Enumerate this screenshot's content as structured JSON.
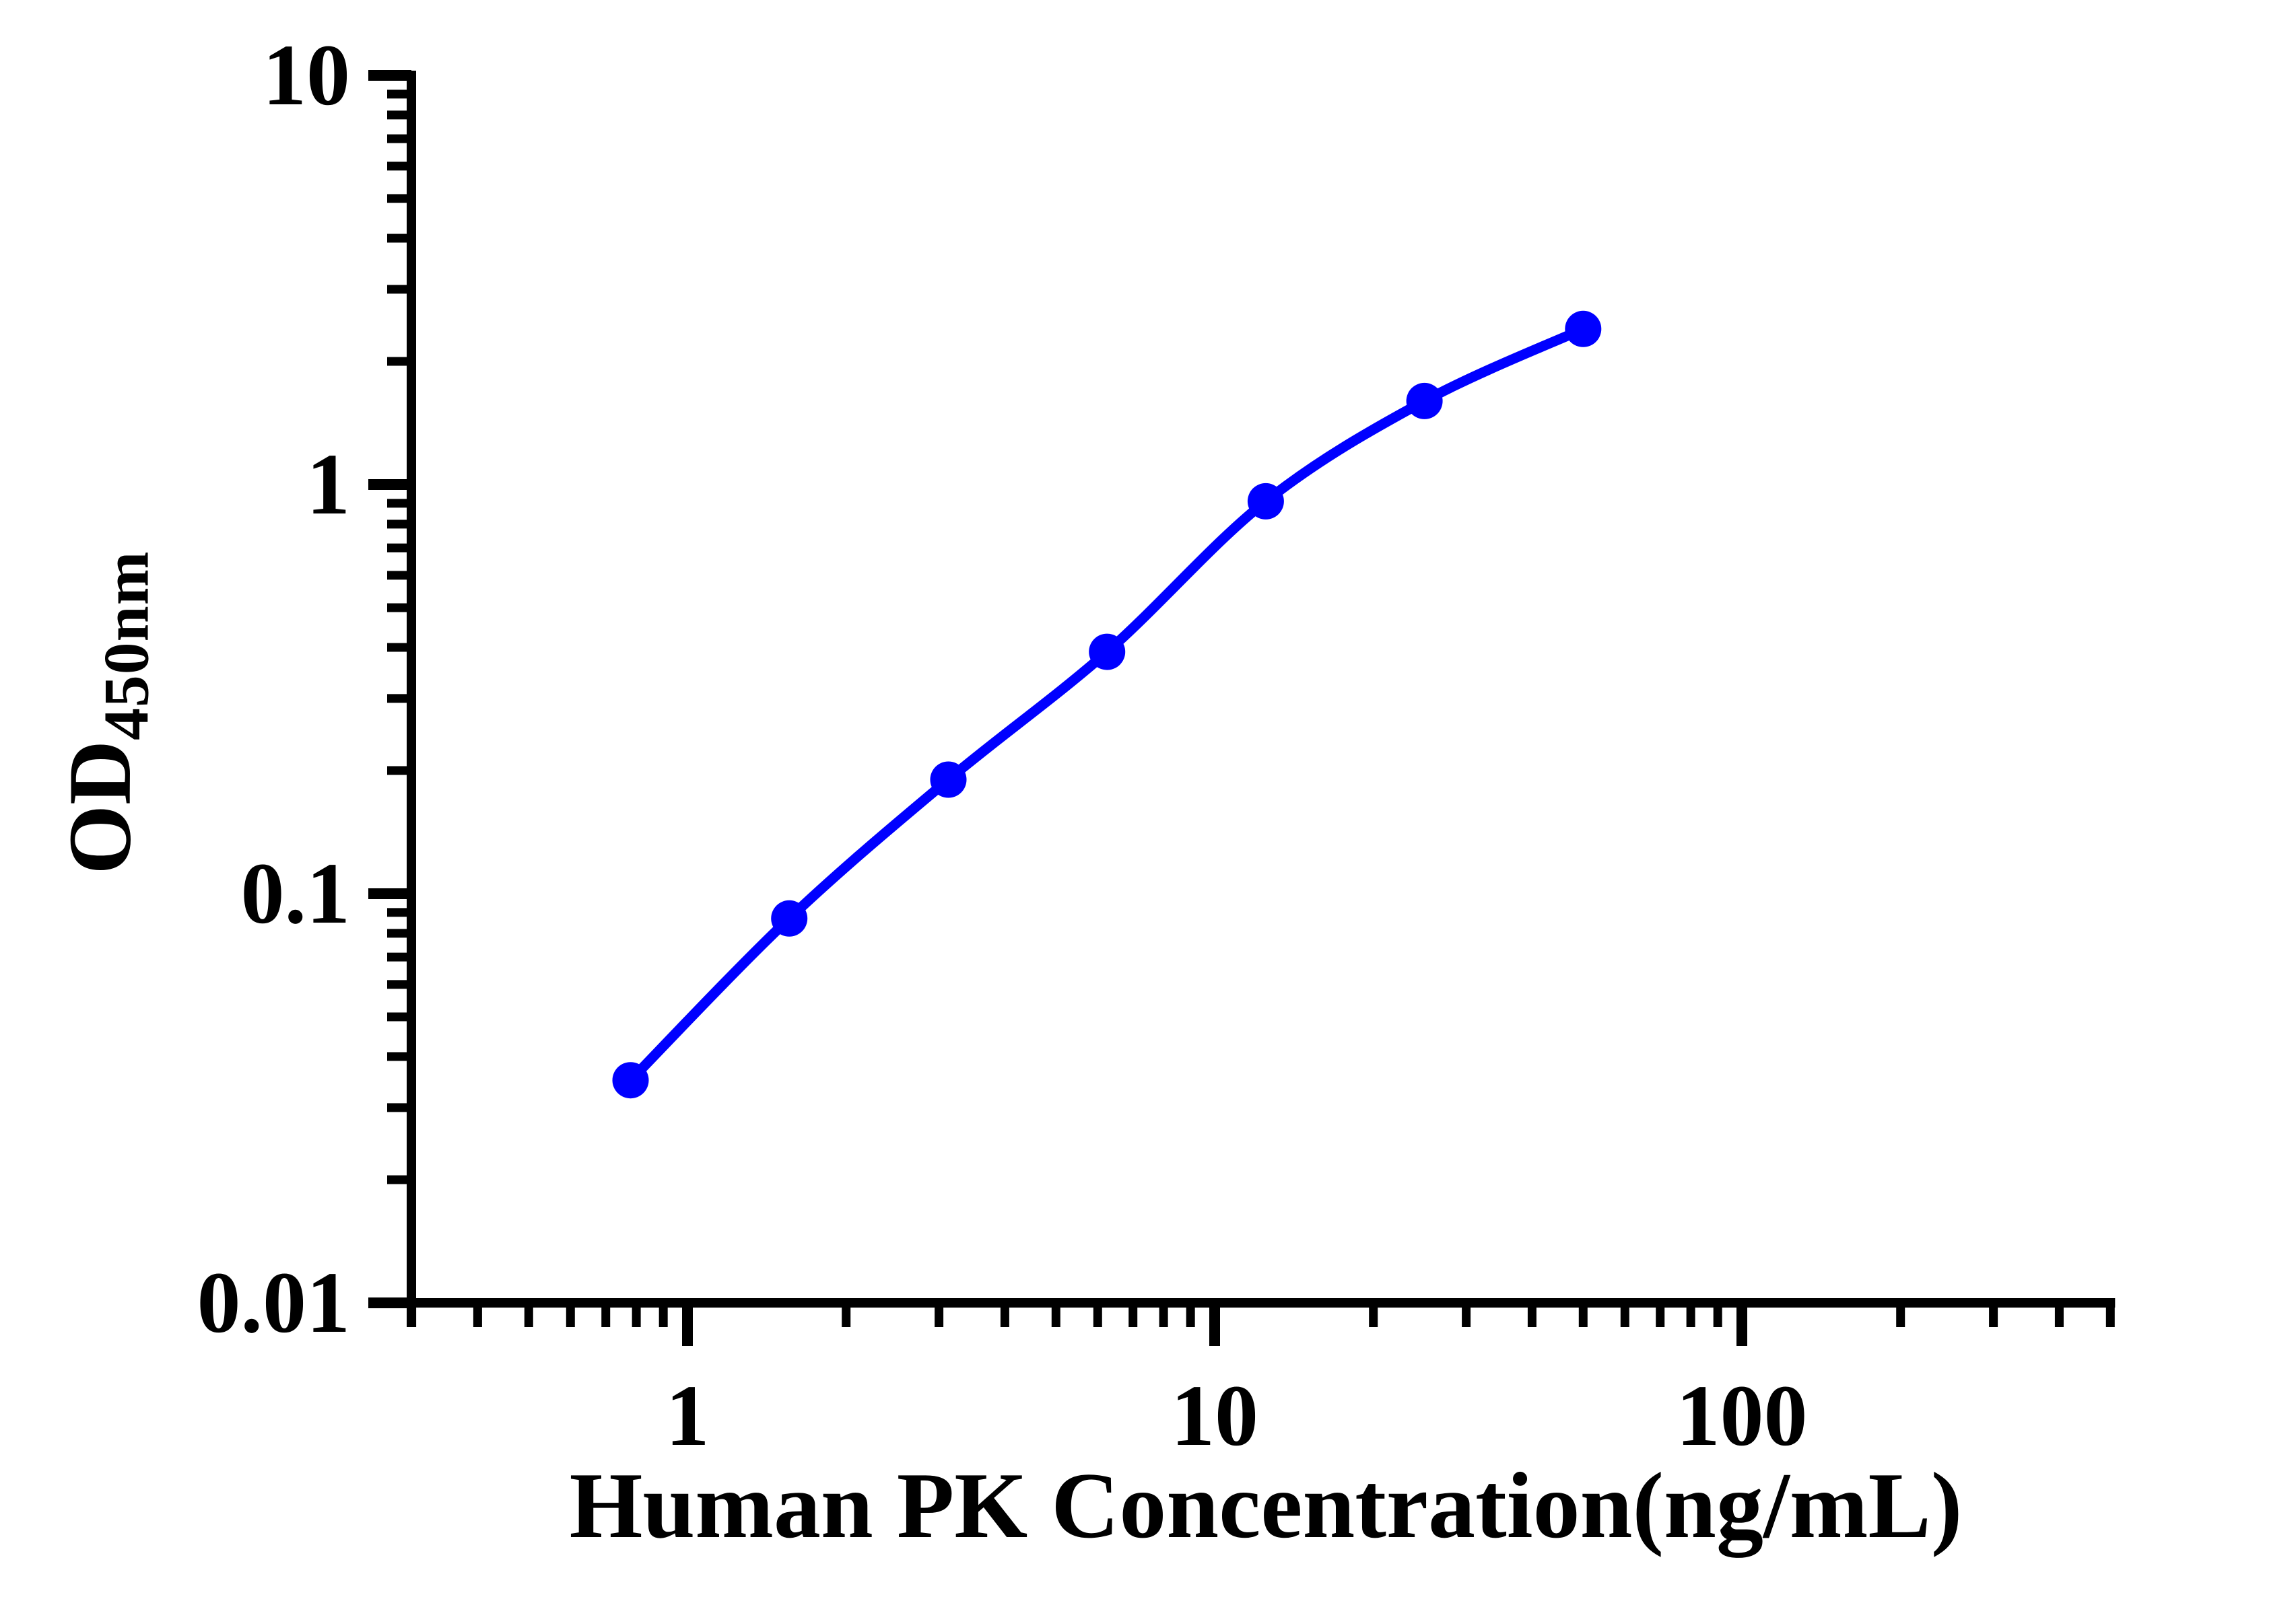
{
  "figure": {
    "background_color": "#ffffff",
    "axis_color": "#000000",
    "accent_color": "#0000ff"
  },
  "chart_data": {
    "type": "line",
    "title": "",
    "xlabel": "Human PK Concentration(ng/mL)",
    "ylabel_main": "OD",
    "ylabel_sub": "450nm",
    "x": [
      0.78,
      1.56,
      3.125,
      6.25,
      12.5,
      25,
      50
    ],
    "y": [
      0.035,
      0.087,
      0.19,
      0.39,
      0.91,
      1.6,
      2.4
    ],
    "x_scale": "log",
    "y_scale": "log",
    "x_range": [
      0.3,
      500
    ],
    "y_range": [
      0.01,
      10
    ],
    "x_major_ticks": [
      1,
      10,
      100
    ],
    "x_major_tick_labels": [
      "1",
      "10",
      "100"
    ],
    "y_major_ticks": [
      0.01,
      0.1,
      1,
      10
    ],
    "y_major_tick_labels": [
      "0.01",
      "0.1",
      "1",
      "10"
    ],
    "grid": false,
    "legend": "none",
    "marker": "circle",
    "line_color": "#0000ff",
    "marker_color": "#0000ff"
  }
}
